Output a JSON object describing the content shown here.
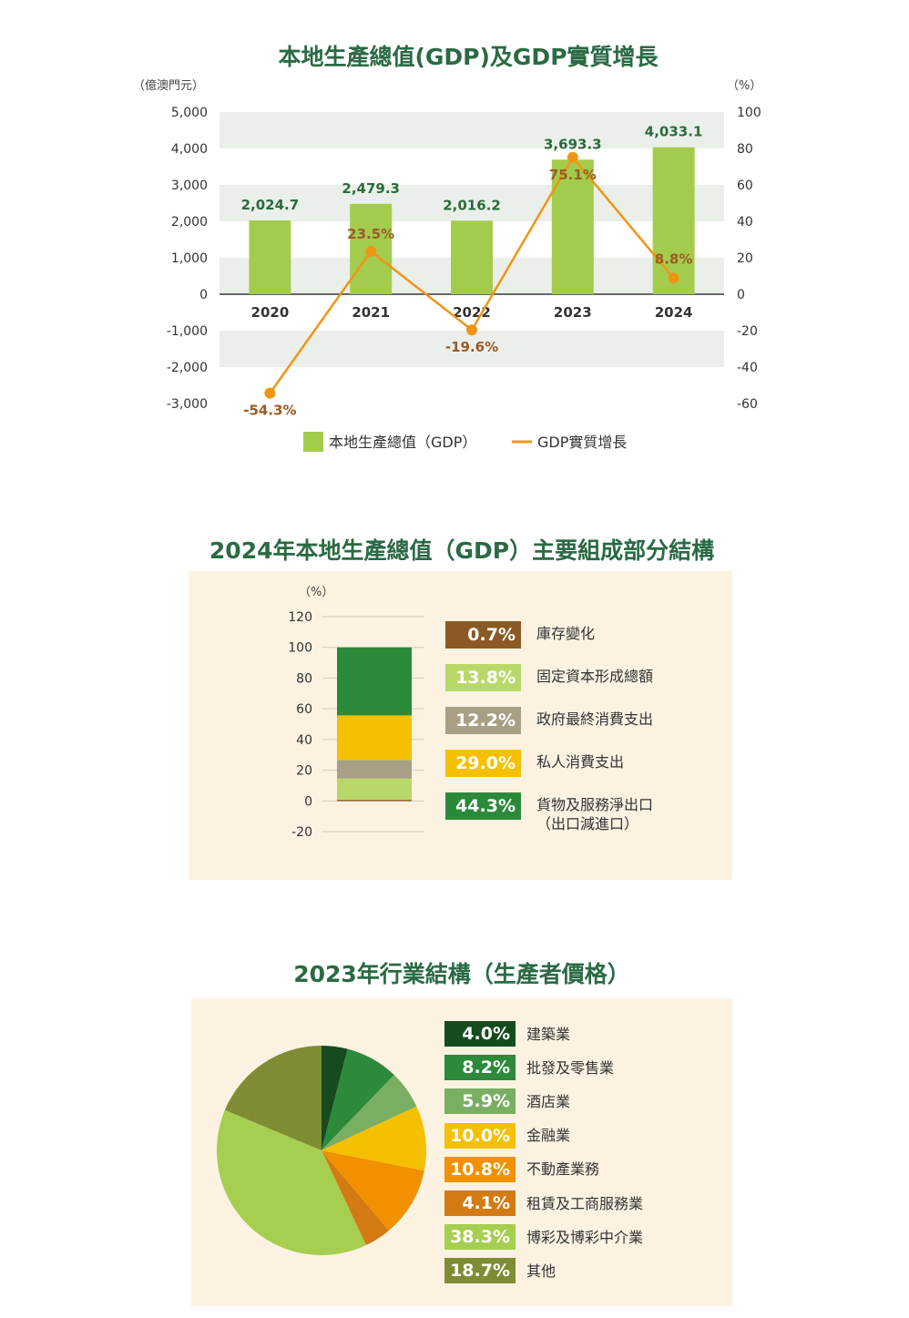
{
  "chart1": {
    "title": "本地生產總值(GDP)及GDP實質增長",
    "left_unit": "（億澳門元）",
    "right_unit": "（%）",
    "chart_data": {
      "type": "bar",
      "categories": [
        "2020",
        "2021",
        "2022",
        "2023",
        "2024"
      ],
      "series": [
        {
          "name": "本地生產總值（GDP）",
          "type": "bar",
          "axis": "left",
          "values": [
            2024.7,
            2479.3,
            2016.2,
            3693.3,
            4033.1
          ],
          "labels": [
            "2,024.7",
            "2,479.3",
            "2,016.2",
            "3,693.3",
            "4,033.1"
          ]
        },
        {
          "name": "GDP實質增長",
          "type": "line",
          "axis": "right",
          "values": [
            -54.3,
            23.5,
            -19.6,
            75.1,
            8.8
          ],
          "labels": [
            "-54.3%",
            "23.5%",
            "-19.6%",
            "75.1%",
            "8.8%"
          ]
        }
      ],
      "left_ticks": [
        "5,000",
        "4,000",
        "3,000",
        "2,000",
        "1,000",
        "0",
        "-1,000",
        "-2,000",
        "-3,000"
      ],
      "right_ticks": [
        "100",
        "80",
        "60",
        "40",
        "20",
        "0",
        "-20",
        "-40",
        "-60"
      ],
      "ylim_left": [
        -3000,
        5000
      ],
      "ylim_right": [
        -60,
        100
      ],
      "legend_placement": "bottom",
      "colors": {
        "bar": "#a3cc4d",
        "line": "#ef9515",
        "bar_label": "#2b6b3c",
        "line_label": "#9b5a24",
        "band": "#ebefea"
      }
    }
  },
  "chart2": {
    "title": "2024年本地生產總值（GDP）主要組成部分結構",
    "unit": "（%）",
    "chart_data": {
      "type": "bar",
      "stacked": true,
      "y_ticks": [
        "120",
        "100",
        "80",
        "60",
        "40",
        "20",
        "0",
        "-20"
      ],
      "ylim": [
        -20,
        120
      ],
      "segments": [
        {
          "name": "庫存變化",
          "value": 0.7,
          "label": "0.7%",
          "color": "#8b5a24"
        },
        {
          "name": "固定資本形成總額",
          "value": 13.8,
          "label": "13.8%",
          "color": "#b8d96a"
        },
        {
          "name": "政府最終消費支出",
          "value": 12.2,
          "label": "12.2%",
          "color": "#a99f84"
        },
        {
          "name": "私人消費支出",
          "value": 29.0,
          "label": "29.0%",
          "color": "#f5c000"
        },
        {
          "name": "貨物及服務淨出口",
          "name_line2": "（出口減進口）",
          "value": 44.3,
          "label": "44.3%",
          "color": "#2b8a3a"
        }
      ]
    }
  },
  "chart3": {
    "title": "2023年行業結構（生產者價格）",
    "chart_data": {
      "type": "pie",
      "slices": [
        {
          "name": "建築業",
          "value": 4.0,
          "label": "4.0%",
          "color": "#154b1f"
        },
        {
          "name": "批發及零售業",
          "value": 8.2,
          "label": "8.2%",
          "color": "#2c8a3a"
        },
        {
          "name": "酒店業",
          "value": 5.9,
          "label": "5.9%",
          "color": "#7aaf63"
        },
        {
          "name": "金融業",
          "value": 10.0,
          "label": "10.0%",
          "color": "#f5c000"
        },
        {
          "name": "不動產業務",
          "value": 10.8,
          "label": "10.8%",
          "color": "#f29100"
        },
        {
          "name": "租賃及工商服務業",
          "value": 4.1,
          "label": "4.1%",
          "color": "#d37b12"
        },
        {
          "name": "博彩及博彩中介業",
          "value": 38.3,
          "label": "38.3%",
          "color": "#a6ce4f"
        },
        {
          "name": "其他",
          "value": 18.7,
          "label": "18.7%",
          "color": "#7f8c33"
        }
      ]
    }
  }
}
